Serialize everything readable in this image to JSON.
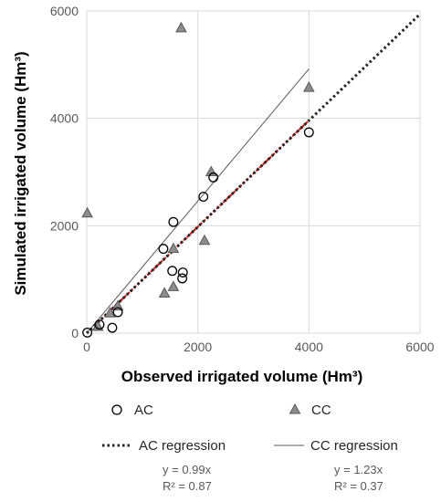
{
  "chart_data": {
    "type": "scatter",
    "xlabel": "Observed irrigated volume  (Hm³)",
    "ylabel": "Simulated irrigated  volume (Hm³)",
    "xlim": [
      0,
      6000
    ],
    "ylim": [
      0,
      6000
    ],
    "xticks": [
      0,
      2000,
      4000,
      6000
    ],
    "yticks": [
      0,
      2000,
      4000,
      6000
    ],
    "xtick_labels": [
      "0",
      "2000",
      "4000",
      "6000"
    ],
    "ytick_labels": [
      "0",
      "2000",
      "4000",
      "6000"
    ],
    "grid": {
      "x": true,
      "y": true
    },
    "legend_position": "bottom",
    "series": [
      {
        "name": "AC",
        "marker": "circle",
        "x": [
          10,
          230,
          460,
          560,
          1380,
          1560,
          1540,
          1720,
          1730,
          2100,
          2280,
          4000
        ],
        "y": [
          10,
          160,
          100,
          390,
          1570,
          2070,
          1160,
          1020,
          1130,
          2540,
          2900,
          3740
        ]
      },
      {
        "name": "CC",
        "marker": "triangle",
        "x": [
          10,
          200,
          420,
          560,
          1400,
          1560,
          1560,
          1700,
          2120,
          2240,
          4000
        ],
        "y": [
          2230,
          120,
          370,
          500,
          740,
          860,
          1570,
          5680,
          1720,
          3000,
          4570
        ]
      }
    ],
    "regressions": [
      {
        "name": "AC regression",
        "slope": 0.99,
        "x_range": [
          0,
          6000
        ],
        "equation": "y = 0.99x",
        "r2_label": "R² = 0.87",
        "style": "dotted"
      },
      {
        "name": "CC regression",
        "slope": 1.23,
        "x_range": [
          0,
          4000
        ],
        "equation": "y = 1.23x",
        "r2_label": "R² = 0.37",
        "style": "solid"
      }
    ],
    "colors": {
      "grid": "#d9d9d9",
      "circle_stroke": "#000000",
      "triangle_fill": "#8c8c8c",
      "triangle_stroke": "#595959",
      "ac_regression": "#262626",
      "cc_regression": "#595959",
      "red_segment": "#e00000"
    }
  }
}
